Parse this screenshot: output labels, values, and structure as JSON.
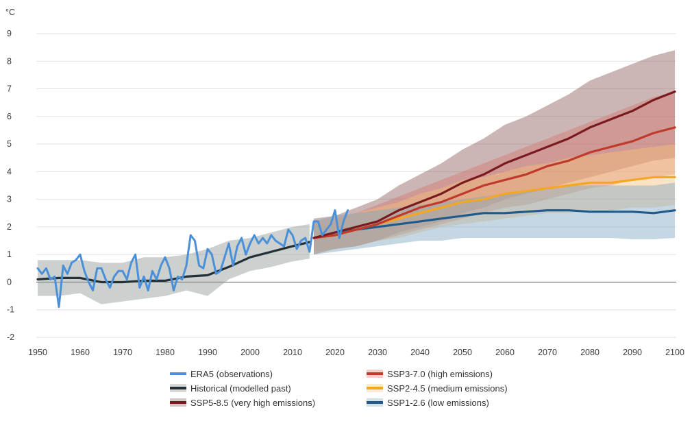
{
  "chart_data": {
    "type": "line",
    "unit": "°C",
    "xlim": [
      1950,
      2100
    ],
    "ylim": [
      -2,
      9
    ],
    "x_ticks": [
      "1950",
      "1960",
      "1970",
      "1980",
      "1990",
      "2000",
      "2010",
      "2020",
      "2030",
      "2040",
      "2050",
      "2060",
      "2070",
      "2080",
      "2090",
      "2100"
    ],
    "y_ticks": [
      "-2",
      "-1",
      "0",
      "1",
      "2",
      "3",
      "4",
      "5",
      "6",
      "7",
      "8",
      "9"
    ],
    "grid": true,
    "legend_position": "bottom",
    "series": [
      {
        "name": "ERA5 (observations)",
        "kind": "observed",
        "color": "#4a90d9",
        "x": [
          1950,
          1951,
          1952,
          1953,
          1954,
          1955,
          1956,
          1957,
          1958,
          1959,
          1960,
          1961,
          1962,
          1963,
          1964,
          1965,
          1966,
          1967,
          1968,
          1969,
          1970,
          1971,
          1972,
          1973,
          1974,
          1975,
          1976,
          1977,
          1978,
          1979,
          1980,
          1981,
          1982,
          1983,
          1984,
          1985,
          1986,
          1987,
          1988,
          1989,
          1990,
          1991,
          1992,
          1993,
          1994,
          1995,
          1996,
          1997,
          1998,
          1999,
          2000,
          2001,
          2002,
          2003,
          2004,
          2005,
          2006,
          2007,
          2008,
          2009,
          2010,
          2011,
          2012,
          2013,
          2014,
          2015,
          2016,
          2017,
          2018,
          2019,
          2020,
          2021,
          2022,
          2023
        ],
        "y": [
          0.5,
          0.3,
          0.5,
          0.1,
          0.2,
          -0.9,
          0.6,
          0.3,
          0.7,
          0.8,
          1.0,
          0.4,
          0.0,
          -0.3,
          0.5,
          0.5,
          0.1,
          -0.2,
          0.2,
          0.4,
          0.4,
          0.1,
          0.7,
          1.0,
          -0.2,
          0.2,
          -0.3,
          0.4,
          0.1,
          0.6,
          0.9,
          0.5,
          -0.3,
          0.2,
          0.1,
          0.6,
          1.7,
          1.5,
          0.6,
          0.5,
          1.2,
          1.0,
          0.3,
          0.4,
          0.9,
          1.4,
          0.6,
          1.3,
          1.6,
          1.0,
          1.4,
          1.7,
          1.4,
          1.6,
          1.4,
          1.7,
          1.5,
          1.4,
          1.3,
          1.9,
          1.7,
          1.2,
          1.5,
          1.6,
          1.1,
          2.2,
          2.2,
          1.7,
          1.9,
          2.1,
          2.6,
          1.6,
          2.2,
          2.6
        ]
      },
      {
        "name": "Historical (modelled past)",
        "kind": "model",
        "color": "#233038",
        "band_color": "#8e9693",
        "x": [
          1950,
          1955,
          1960,
          1965,
          1970,
          1975,
          1980,
          1985,
          1990,
          1995,
          2000,
          2005,
          2010,
          2014
        ],
        "y": [
          0.1,
          0.15,
          0.15,
          0.0,
          0.0,
          0.05,
          0.05,
          0.2,
          0.25,
          0.55,
          0.9,
          1.1,
          1.3,
          1.45
        ],
        "lower": [
          -0.5,
          -0.5,
          -0.4,
          -0.8,
          -0.7,
          -0.6,
          -0.5,
          -0.3,
          -0.5,
          0.1,
          0.4,
          0.55,
          0.75,
          0.85
        ],
        "upper": [
          0.8,
          0.8,
          0.8,
          0.7,
          0.7,
          0.9,
          0.9,
          1.0,
          1.2,
          1.5,
          1.6,
          1.8,
          2.0,
          2.1
        ]
      },
      {
        "name": "SSP5-8.5 (very high emissions)",
        "kind": "projection",
        "color": "#7a1a1e",
        "band_color": "#8b5a5a",
        "x": [
          2015,
          2020,
          2025,
          2030,
          2035,
          2040,
          2045,
          2050,
          2055,
          2060,
          2065,
          2070,
          2075,
          2080,
          2085,
          2090,
          2095,
          2100
        ],
        "y": [
          1.6,
          1.8,
          2.0,
          2.2,
          2.6,
          2.9,
          3.2,
          3.6,
          3.9,
          4.3,
          4.6,
          4.9,
          5.2,
          5.6,
          5.9,
          6.2,
          6.6,
          6.9
        ],
        "lower": [
          1.0,
          1.2,
          1.3,
          1.5,
          1.8,
          2.0,
          2.2,
          2.5,
          2.7,
          3.0,
          3.2,
          3.4,
          3.6,
          3.8,
          4.0,
          4.2,
          4.4,
          4.5
        ],
        "upper": [
          2.3,
          2.4,
          2.7,
          3.0,
          3.5,
          3.9,
          4.3,
          4.8,
          5.2,
          5.7,
          6.0,
          6.4,
          6.8,
          7.3,
          7.6,
          7.9,
          8.2,
          8.4
        ]
      },
      {
        "name": "SSP3-7.0 (high emissions)",
        "kind": "projection",
        "color": "#c0392b",
        "band_color": "#d47a6e",
        "x": [
          2015,
          2020,
          2025,
          2030,
          2035,
          2040,
          2045,
          2050,
          2055,
          2060,
          2065,
          2070,
          2075,
          2080,
          2085,
          2090,
          2095,
          2100
        ],
        "y": [
          1.6,
          1.7,
          1.9,
          2.1,
          2.4,
          2.7,
          2.9,
          3.2,
          3.5,
          3.7,
          3.9,
          4.2,
          4.4,
          4.7,
          4.9,
          5.1,
          5.4,
          5.6
        ],
        "lower": [
          1.1,
          1.2,
          1.3,
          1.5,
          1.7,
          1.9,
          2.1,
          2.3,
          2.5,
          2.7,
          2.8,
          3.0,
          3.2,
          3.4,
          3.5,
          3.7,
          3.8,
          3.9
        ],
        "upper": [
          2.2,
          2.3,
          2.5,
          2.8,
          3.1,
          3.4,
          3.7,
          4.0,
          4.3,
          4.6,
          4.9,
          5.2,
          5.5,
          5.8,
          6.1,
          6.4,
          6.7,
          6.9
        ]
      },
      {
        "name": "SSP2-4.5 (medium emissions)",
        "kind": "projection",
        "color": "#f5a623",
        "band_color": "#f6c27a",
        "x": [
          2015,
          2020,
          2025,
          2030,
          2035,
          2040,
          2045,
          2050,
          2055,
          2060,
          2065,
          2070,
          2075,
          2080,
          2085,
          2090,
          2095,
          2100
        ],
        "y": [
          1.6,
          1.7,
          1.9,
          2.1,
          2.3,
          2.5,
          2.7,
          2.9,
          3.0,
          3.2,
          3.3,
          3.4,
          3.5,
          3.6,
          3.6,
          3.7,
          3.8,
          3.8
        ],
        "lower": [
          1.0,
          1.2,
          1.3,
          1.5,
          1.6,
          1.8,
          2.0,
          2.1,
          2.2,
          2.3,
          2.4,
          2.5,
          2.5,
          2.6,
          2.6,
          2.7,
          2.7,
          2.8
        ],
        "upper": [
          2.2,
          2.3,
          2.5,
          2.7,
          2.9,
          3.2,
          3.4,
          3.7,
          3.8,
          4.0,
          4.2,
          4.3,
          4.5,
          4.6,
          4.7,
          4.8,
          4.9,
          5.0
        ]
      },
      {
        "name": "SSP1-2.6 (low emissions)",
        "kind": "projection",
        "color": "#1f5a8a",
        "band_color": "#7fa6c2",
        "x": [
          2015,
          2020,
          2025,
          2030,
          2035,
          2040,
          2045,
          2050,
          2055,
          2060,
          2065,
          2070,
          2075,
          2080,
          2085,
          2090,
          2095,
          2100
        ],
        "y": [
          1.6,
          1.8,
          1.9,
          2.0,
          2.1,
          2.2,
          2.3,
          2.4,
          2.5,
          2.5,
          2.55,
          2.6,
          2.6,
          2.55,
          2.55,
          2.55,
          2.5,
          2.6
        ],
        "lower": [
          1.0,
          1.1,
          1.2,
          1.3,
          1.4,
          1.5,
          1.5,
          1.6,
          1.6,
          1.6,
          1.6,
          1.6,
          1.6,
          1.6,
          1.6,
          1.55,
          1.55,
          1.6
        ],
        "upper": [
          2.2,
          2.4,
          2.5,
          2.6,
          2.7,
          2.8,
          2.9,
          3.0,
          3.1,
          3.2,
          3.3,
          3.4,
          3.5,
          3.5,
          3.5,
          3.5,
          3.5,
          3.6
        ]
      }
    ]
  }
}
